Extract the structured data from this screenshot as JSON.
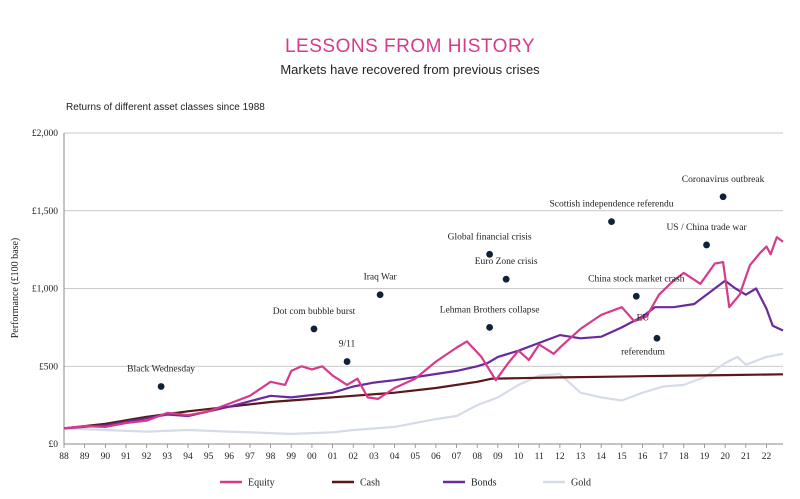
{
  "header": {
    "title": "LESSONS FROM HISTORY",
    "subtitle": "Markets have recovered from previous crises",
    "note": "Returns of different asset classes since 1988"
  },
  "chart_data": {
    "type": "line",
    "ylabel": "Performance (£100 base)",
    "ylim": [
      0,
      2000
    ],
    "xlim": [
      1988,
      2022.8
    ],
    "yticks": [
      {
        "v": 0,
        "label": "£0"
      },
      {
        "v": 500,
        "label": "£500"
      },
      {
        "v": 1000,
        "label": "£1,000"
      },
      {
        "v": 1500,
        "label": "£1,500"
      },
      {
        "v": 2000,
        "label": "£2,000"
      }
    ],
    "xticks": [
      {
        "v": 1988,
        "label": "88"
      },
      {
        "v": 1989,
        "label": "89"
      },
      {
        "v": 1990,
        "label": "90"
      },
      {
        "v": 1991,
        "label": "91"
      },
      {
        "v": 1992,
        "label": "92"
      },
      {
        "v": 1993,
        "label": "93"
      },
      {
        "v": 1994,
        "label": "94"
      },
      {
        "v": 1995,
        "label": "95"
      },
      {
        "v": 1996,
        "label": "96"
      },
      {
        "v": 1997,
        "label": "97"
      },
      {
        "v": 1998,
        "label": "98"
      },
      {
        "v": 1999,
        "label": "99"
      },
      {
        "v": 2000,
        "label": "00"
      },
      {
        "v": 2001,
        "label": "01"
      },
      {
        "v": 2002,
        "label": "02"
      },
      {
        "v": 2003,
        "label": "03"
      },
      {
        "v": 2004,
        "label": "04"
      },
      {
        "v": 2005,
        "label": "05"
      },
      {
        "v": 2006,
        "label": "06"
      },
      {
        "v": 2007,
        "label": "07"
      },
      {
        "v": 2008,
        "label": "08"
      },
      {
        "v": 2009,
        "label": "09"
      },
      {
        "v": 2010,
        "label": "10"
      },
      {
        "v": 2011,
        "label": "11"
      },
      {
        "v": 2012,
        "label": "12"
      },
      {
        "v": 2013,
        "label": "13"
      },
      {
        "v": 2014,
        "label": "14"
      },
      {
        "v": 2015,
        "label": "15"
      },
      {
        "v": 2016,
        "label": "16"
      },
      {
        "v": 2017,
        "label": "17"
      },
      {
        "v": 2018,
        "label": "18"
      },
      {
        "v": 2019,
        "label": "19"
      },
      {
        "v": 2020,
        "label": "20"
      },
      {
        "v": 2021,
        "label": "21"
      },
      {
        "v": 2022,
        "label": "22"
      }
    ],
    "grid": true,
    "legend_position": "bottom",
    "series": [
      {
        "name": "Equity",
        "color": "#d63a8a",
        "points": [
          [
            1988,
            100
          ],
          [
            1989,
            115
          ],
          [
            1990,
            110
          ],
          [
            1991,
            135
          ],
          [
            1992,
            150
          ],
          [
            1993,
            200
          ],
          [
            1994,
            185
          ],
          [
            1995,
            210
          ],
          [
            1996,
            260
          ],
          [
            1997,
            310
          ],
          [
            1998,
            400
          ],
          [
            1998.7,
            380
          ],
          [
            1999,
            470
          ],
          [
            1999.5,
            500
          ],
          [
            2000,
            480
          ],
          [
            2000.5,
            500
          ],
          [
            2001,
            440
          ],
          [
            2001.7,
            380
          ],
          [
            2002.2,
            420
          ],
          [
            2002.7,
            300
          ],
          [
            2003.2,
            290
          ],
          [
            2004,
            360
          ],
          [
            2005,
            420
          ],
          [
            2006,
            530
          ],
          [
            2007,
            620
          ],
          [
            2007.5,
            660
          ],
          [
            2008.2,
            560
          ],
          [
            2008.9,
            410
          ],
          [
            2009.5,
            520
          ],
          [
            2010,
            600
          ],
          [
            2010.5,
            540
          ],
          [
            2011,
            640
          ],
          [
            2011.7,
            580
          ],
          [
            2012,
            620
          ],
          [
            2013,
            740
          ],
          [
            2014,
            830
          ],
          [
            2015,
            880
          ],
          [
            2015.6,
            790
          ],
          [
            2016.2,
            820
          ],
          [
            2016.8,
            960
          ],
          [
            2017.5,
            1050
          ],
          [
            2018,
            1100
          ],
          [
            2018.8,
            1030
          ],
          [
            2019.5,
            1160
          ],
          [
            2019.9,
            1170
          ],
          [
            2020.2,
            880
          ],
          [
            2020.7,
            960
          ],
          [
            2021.2,
            1150
          ],
          [
            2021.7,
            1230
          ],
          [
            2022,
            1270
          ],
          [
            2022.2,
            1220
          ],
          [
            2022.5,
            1330
          ],
          [
            2022.8,
            1300
          ]
        ]
      },
      {
        "name": "Cash",
        "color": "#5a1818",
        "points": [
          [
            1988,
            100
          ],
          [
            1990,
            130
          ],
          [
            1992,
            175
          ],
          [
            1994,
            210
          ],
          [
            1996,
            240
          ],
          [
            1998,
            270
          ],
          [
            2000,
            290
          ],
          [
            2002,
            310
          ],
          [
            2004,
            330
          ],
          [
            2006,
            360
          ],
          [
            2008,
            400
          ],
          [
            2008.7,
            420
          ],
          [
            2010,
            423
          ],
          [
            2012,
            428
          ],
          [
            2014,
            432
          ],
          [
            2016,
            436
          ],
          [
            2018,
            440
          ],
          [
            2020,
            443
          ],
          [
            2022.8,
            448
          ]
        ]
      },
      {
        "name": "Bonds",
        "color": "#6a2a9c",
        "points": [
          [
            1988,
            100
          ],
          [
            1990,
            120
          ],
          [
            1992,
            165
          ],
          [
            1993,
            190
          ],
          [
            1994,
            180
          ],
          [
            1996,
            240
          ],
          [
            1998,
            310
          ],
          [
            1999,
            300
          ],
          [
            2000,
            315
          ],
          [
            2001,
            330
          ],
          [
            2002,
            370
          ],
          [
            2003,
            395
          ],
          [
            2004,
            410
          ],
          [
            2005,
            430
          ],
          [
            2006,
            450
          ],
          [
            2007,
            470
          ],
          [
            2008,
            500
          ],
          [
            2008.5,
            520
          ],
          [
            2009,
            560
          ],
          [
            2010,
            600
          ],
          [
            2011,
            650
          ],
          [
            2012,
            700
          ],
          [
            2013,
            680
          ],
          [
            2014,
            690
          ],
          [
            2015,
            750
          ],
          [
            2016,
            820
          ],
          [
            2016.6,
            880
          ],
          [
            2017.5,
            880
          ],
          [
            2018.5,
            900
          ],
          [
            2019.5,
            1000
          ],
          [
            2020,
            1050
          ],
          [
            2020.5,
            1000
          ],
          [
            2021,
            960
          ],
          [
            2021.5,
            1000
          ],
          [
            2022,
            870
          ],
          [
            2022.3,
            760
          ],
          [
            2022.8,
            730
          ]
        ]
      },
      {
        "name": "Gold",
        "color": "#d5dce8",
        "points": [
          [
            1988,
            100
          ],
          [
            1990,
            90
          ],
          [
            1992,
            80
          ],
          [
            1994,
            90
          ],
          [
            1996,
            80
          ],
          [
            1998,
            70
          ],
          [
            1999,
            65
          ],
          [
            2000,
            70
          ],
          [
            2001,
            75
          ],
          [
            2002,
            90
          ],
          [
            2004,
            110
          ],
          [
            2006,
            160
          ],
          [
            2007,
            180
          ],
          [
            2008,
            250
          ],
          [
            2009,
            300
          ],
          [
            2010,
            380
          ],
          [
            2011,
            440
          ],
          [
            2012,
            450
          ],
          [
            2013,
            330
          ],
          [
            2014,
            300
          ],
          [
            2015,
            280
          ],
          [
            2016,
            330
          ],
          [
            2017,
            370
          ],
          [
            2018,
            380
          ],
          [
            2019,
            430
          ],
          [
            2020,
            520
          ],
          [
            2020.6,
            560
          ],
          [
            2021,
            510
          ],
          [
            2022,
            560
          ],
          [
            2022.8,
            580
          ]
        ]
      }
    ],
    "annotations": [
      {
        "label": "Black Wednesday",
        "x": 1992.7,
        "y": 370
      },
      {
        "label": "9/11",
        "x": 2001.7,
        "y": 530
      },
      {
        "label": "Dot com bubble burst",
        "x": 2000.1,
        "y": 740
      },
      {
        "label": "Iraq War",
        "x": 2003.3,
        "y": 960
      },
      {
        "label": "Global financial crisis",
        "x": 2008.6,
        "y": 1220
      },
      {
        "label": "Euro Zone crisis",
        "x": 2009.4,
        "y": 1060
      },
      {
        "label": "Lehman Brothers collapse",
        "x": 2008.6,
        "y": 750
      },
      {
        "label": "Scottish  independence referendu",
        "x": 2014.5,
        "y": 1430
      },
      {
        "label": "China stock market crash",
        "x": 2015.7,
        "y": 950
      },
      {
        "label": "EU",
        "label2": "referendum",
        "x": 2016.7,
        "y": 680
      },
      {
        "label": "US / China trade war",
        "x": 2019.1,
        "y": 1280
      },
      {
        "label": "Coronavirus outbreak",
        "x": 2019.9,
        "y": 1590
      }
    ]
  }
}
